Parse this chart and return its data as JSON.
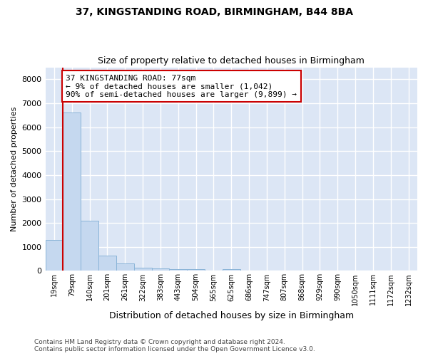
{
  "title1": "37, KINGSTANDING ROAD, BIRMINGHAM, B44 8BA",
  "title2": "Size of property relative to detached houses in Birmingham",
  "xlabel": "Distribution of detached houses by size in Birmingham",
  "ylabel": "Number of detached properties",
  "bin_labels": [
    "19sqm",
    "79sqm",
    "140sqm",
    "201sqm",
    "261sqm",
    "322sqm",
    "383sqm",
    "443sqm",
    "504sqm",
    "565sqm",
    "625sqm",
    "686sqm",
    "747sqm",
    "807sqm",
    "868sqm",
    "929sqm",
    "990sqm",
    "1050sqm",
    "1111sqm",
    "1172sqm",
    "1232sqm"
  ],
  "bar_heights": [
    1300,
    6600,
    2080,
    650,
    300,
    140,
    110,
    80,
    75,
    0,
    75,
    0,
    0,
    0,
    0,
    0,
    0,
    0,
    0,
    0,
    0
  ],
  "bar_color": "#c5d8ef",
  "bar_edge_color": "#8ab4d8",
  "property_line_x": 1,
  "annotation_text": "37 KINGSTANDING ROAD: 77sqm\n← 9% of detached houses are smaller (1,042)\n90% of semi-detached houses are larger (9,899) →",
  "annotation_box_color": "#ffffff",
  "annotation_box_edge": "#cc0000",
  "vline_color": "#cc0000",
  "ylim": [
    0,
    8500
  ],
  "yticks": [
    0,
    1000,
    2000,
    3000,
    4000,
    5000,
    6000,
    7000,
    8000
  ],
  "background_color": "#dce6f5",
  "grid_color": "#ffffff",
  "fig_bg": "#ffffff",
  "footer1": "Contains HM Land Registry data © Crown copyright and database right 2024.",
  "footer2": "Contains public sector information licensed under the Open Government Licence v3.0."
}
